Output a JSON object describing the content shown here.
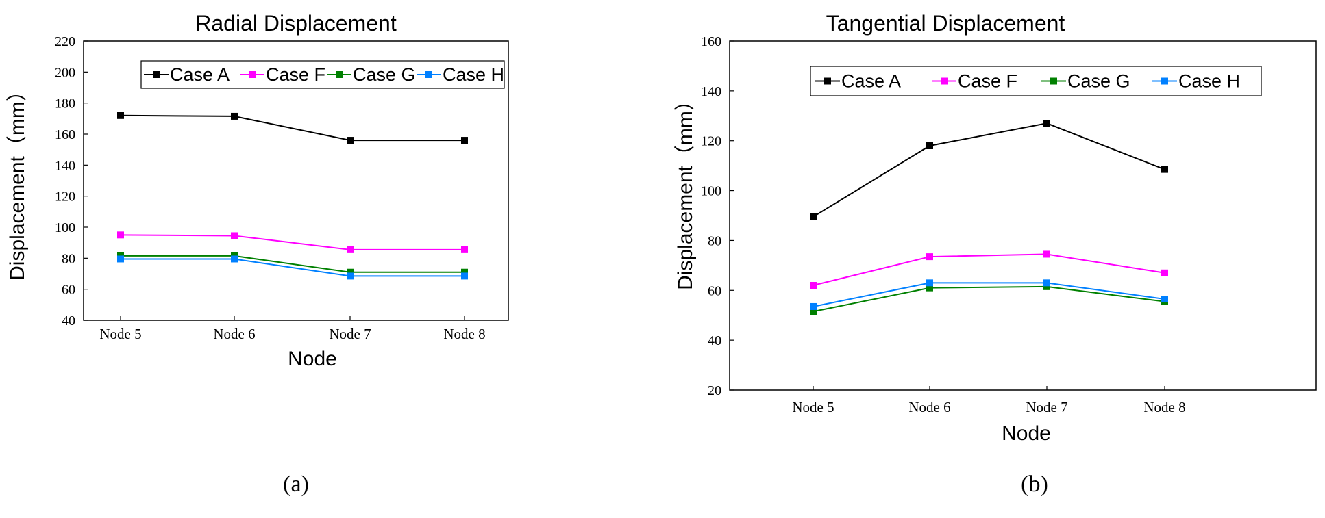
{
  "chart_data": [
    {
      "type": "line",
      "title": "Radial Displacement",
      "xlabel": "Node",
      "ylabel": "Displacement（mm）",
      "ylim": [
        40,
        220
      ],
      "yticks": [
        40,
        60,
        80,
        100,
        120,
        140,
        160,
        180,
        200,
        220
      ],
      "categories": [
        "Node 5",
        "Node 6",
        "Node 7",
        "Node 8"
      ],
      "legend_position": "top",
      "sublabel": "(a)",
      "series": [
        {
          "name": "Case A",
          "color": "#000000",
          "values": [
            172,
            171.5,
            156,
            156
          ]
        },
        {
          "name": "Case F",
          "color": "#ff00ff",
          "values": [
            95,
            94.5,
            85.5,
            85.5
          ]
        },
        {
          "name": "Case G",
          "color": "#008000",
          "values": [
            81.5,
            81.5,
            71,
            71
          ]
        },
        {
          "name": "Case H",
          "color": "#0080ff",
          "values": [
            79.5,
            79.5,
            68.5,
            68.5
          ]
        }
      ]
    },
    {
      "type": "line",
      "title": "Tangential Displacement",
      "xlabel": "Node",
      "ylabel": "Displacement（mm）",
      "ylim": [
        20,
        160
      ],
      "yticks": [
        20,
        40,
        60,
        80,
        100,
        120,
        140,
        160
      ],
      "categories": [
        "Node 5",
        "Node 6",
        "Node 7",
        "Node 8"
      ],
      "legend_position": "top",
      "sublabel": "(b)",
      "series": [
        {
          "name": "Case A",
          "color": "#000000",
          "values": [
            89.5,
            118,
            127,
            108.5
          ]
        },
        {
          "name": "Case F",
          "color": "#ff00ff",
          "values": [
            62,
            73.5,
            74.5,
            67
          ]
        },
        {
          "name": "Case G",
          "color": "#008000",
          "values": [
            51.5,
            61,
            61.5,
            55.5
          ]
        },
        {
          "name": "Case H",
          "color": "#0080ff",
          "values": [
            53.5,
            63,
            63,
            56.5
          ]
        }
      ]
    }
  ]
}
